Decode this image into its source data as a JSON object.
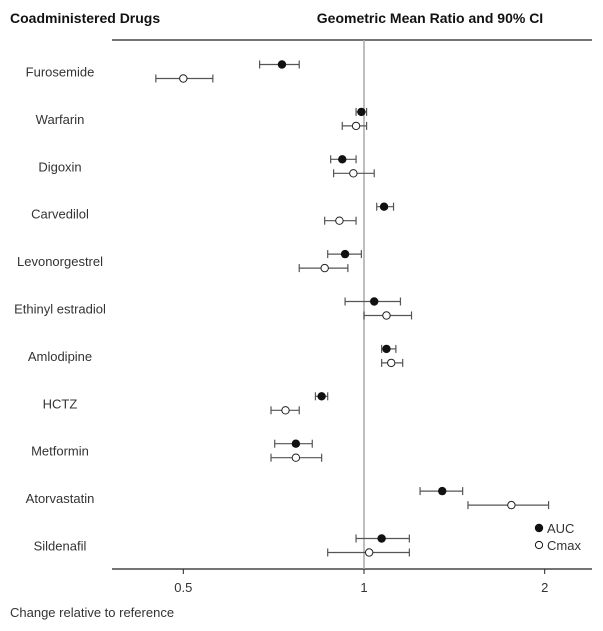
{
  "chart_data": {
    "type": "scatter",
    "subtype": "forest-plot",
    "title": "Geometric Mean Ratio and 90% CI",
    "row_header": "Coadministered Drugs",
    "xlabel": "Change relative to reference",
    "xscale": "log2",
    "xlim": [
      0.38,
      2.4
    ],
    "reference_line": 1,
    "xticks": [
      0.5,
      1,
      2
    ],
    "xtick_labels": [
      "0.5",
      "1",
      "2"
    ],
    "legend": {
      "placement": "bottom-right",
      "entries": [
        {
          "name": "AUC",
          "marker": "filled-circle"
        },
        {
          "name": "Cmax",
          "marker": "open-circle"
        }
      ]
    },
    "categories": [
      "Furosemide",
      "Warfarin",
      "Digoxin",
      "Carvedilol",
      "Levonorgestrel",
      "Ethinyl estradiol",
      "Amlodipine",
      "HCTZ",
      "Metformin",
      "Atorvastatin",
      "Sildenafil"
    ],
    "series": [
      {
        "name": "AUC",
        "values": [
          0.73,
          0.99,
          0.92,
          1.08,
          0.93,
          1.04,
          1.09,
          0.85,
          0.77,
          1.35,
          1.07
        ],
        "lower": [
          0.67,
          0.97,
          0.88,
          1.05,
          0.87,
          0.93,
          1.07,
          0.83,
          0.71,
          1.24,
          0.97
        ],
        "upper": [
          0.78,
          1.01,
          0.97,
          1.12,
          0.99,
          1.15,
          1.13,
          0.87,
          0.82,
          1.46,
          1.19
        ]
      },
      {
        "name": "Cmax",
        "values": [
          0.5,
          0.97,
          0.96,
          0.91,
          0.86,
          1.09,
          1.11,
          0.74,
          0.77,
          1.76,
          1.02
        ],
        "lower": [
          0.45,
          0.92,
          0.89,
          0.86,
          0.78,
          1.0,
          1.07,
          0.7,
          0.7,
          1.49,
          0.87
        ],
        "upper": [
          0.56,
          1.01,
          1.04,
          0.97,
          0.94,
          1.2,
          1.16,
          0.78,
          0.85,
          2.03,
          1.19
        ]
      }
    ]
  }
}
